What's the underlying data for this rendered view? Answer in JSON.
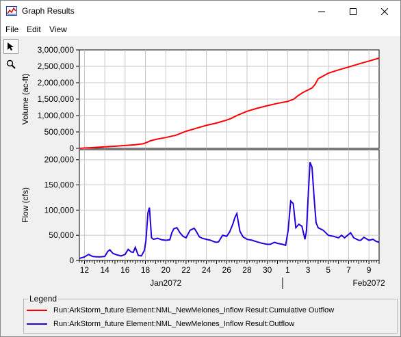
{
  "window": {
    "title": "Graph Results",
    "icon": "graph-chart-icon",
    "controls": [
      "minimize-icon",
      "maximize-icon",
      "close-icon"
    ]
  },
  "menu": {
    "items": [
      {
        "label": "File"
      },
      {
        "label": "Edit"
      },
      {
        "label": "View"
      }
    ]
  },
  "tools": [
    {
      "icon": "pointer-arrow-icon",
      "active": true
    },
    {
      "icon": "magnifier-zoom-icon",
      "active": false
    }
  ],
  "colors": {
    "volume_series": "#ff0000",
    "flow_series": "#2200dd",
    "gridline": "#c8c8c8"
  },
  "chart_data": [
    {
      "type": "line",
      "ylabel": "Volume (ac-ft)",
      "ylim": [
        0,
        3000000
      ],
      "yticks": [
        0,
        500000,
        1000000,
        1500000,
        2000000,
        2500000,
        3000000
      ],
      "ytick_labels": [
        "0",
        "500,000",
        "1,000,000",
        "1,500,000",
        "2,000,000",
        "2,500,000",
        "3,000,000"
      ],
      "grid": true,
      "series": [
        {
          "name": "Run:ArkStorm_future Element:NML_NewMelones_Inflow Result:Cumulative Outflow",
          "color": "#ff0000",
          "x": [
            10.5,
            11,
            12,
            13,
            14,
            15,
            16,
            16.8,
            17.2,
            17.5,
            18,
            19,
            20,
            21,
            22,
            23,
            24,
            25,
            25.5,
            26,
            27,
            28,
            29,
            30,
            31,
            31.6,
            32,
            32.5,
            33,
            33.4,
            33.7,
            34,
            35,
            36,
            37,
            38,
            39,
            40
          ],
          "y": [
            0,
            10000,
            25000,
            45000,
            65000,
            85000,
            110000,
            140000,
            190000,
            230000,
            270000,
            330000,
            400000,
            520000,
            610000,
            700000,
            770000,
            860000,
            920000,
            1000000,
            1130000,
            1220000,
            1300000,
            1370000,
            1430000,
            1500000,
            1600000,
            1700000,
            1780000,
            1840000,
            1950000,
            2120000,
            2290000,
            2390000,
            2480000,
            2570000,
            2660000,
            2750000
          ]
        }
      ]
    },
    {
      "type": "line",
      "ylabel": "Flow (cfs)",
      "ylim": [
        0,
        220000
      ],
      "yticks": [
        0,
        50000,
        100000,
        150000,
        200000
      ],
      "ytick_labels": [
        "0",
        "50,000",
        "100,000",
        "150,000",
        "200,000"
      ],
      "grid": true,
      "x_axis": {
        "range": [
          10.5,
          40
        ],
        "ticks": [
          11,
          13,
          15,
          17,
          19,
          21,
          23,
          25,
          27,
          29,
          31,
          33,
          35,
          37,
          39,
          40
        ],
        "tick_labels": [
          "12",
          "14",
          "16",
          "18",
          "20",
          "22",
          "24",
          "26",
          "28",
          "30",
          "1",
          "3",
          "5",
          "7",
          "9",
          ""
        ],
        "tick_values": [
          "2072-01-12",
          "2072-01-14",
          "2072-01-16",
          "2072-01-18",
          "2072-01-20",
          "2072-01-22",
          "2072-01-24",
          "2072-01-26",
          "2072-01-28",
          "2072-01-30",
          "2072-02-01",
          "2072-02-03",
          "2072-02-05",
          "2072-02-07",
          "2072-02-09"
        ],
        "minor_ticks_per_day": 4,
        "month_labels": [
          {
            "label": "Jan2072",
            "at": 19
          },
          {
            "label": "Feb2072",
            "at": 39
          }
        ],
        "month_divider_at": 30.5
      },
      "series": [
        {
          "name": "Run:ArkStorm_future Element:NML_NewMelones_Inflow Result:Outflow",
          "color": "#2200dd",
          "x": [
            10.5,
            11,
            11.4,
            11.8,
            12.2,
            12.6,
            13,
            13.3,
            13.5,
            13.8,
            14.2,
            14.6,
            15,
            15.3,
            15.6,
            15.8,
            16,
            16.3,
            16.6,
            16.9,
            17.05,
            17.25,
            17.4,
            17.6,
            17.8,
            18.2,
            18.6,
            19,
            19.4,
            19.6,
            19.8,
            20.1,
            20.4,
            20.7,
            21,
            21.4,
            21.8,
            22,
            22.3,
            22.6,
            23,
            23.4,
            23.8,
            24,
            24.2,
            24.6,
            25,
            25.3,
            25.6,
            25.8,
            26,
            26.3,
            26.6,
            27,
            27.5,
            28,
            28.5,
            29,
            29.3,
            29.7,
            30,
            30.5,
            30.8,
            31.05,
            31.3,
            31.55,
            31.8,
            32.1,
            32.4,
            32.7,
            32.85,
            33,
            33.2,
            33.4,
            33.6,
            33.8,
            34,
            34.5,
            35,
            35.5,
            36,
            36.3,
            36.6,
            36.9,
            37.2,
            37.5,
            38,
            38.2,
            38.5,
            39,
            39.4,
            39.7,
            40
          ],
          "y": [
            4000,
            7000,
            12000,
            8000,
            7000,
            7000,
            8000,
            18000,
            21000,
            14000,
            11000,
            9000,
            12000,
            22000,
            17000,
            16000,
            26000,
            10000,
            9000,
            20000,
            40000,
            95000,
            105000,
            45000,
            42000,
            44000,
            41000,
            40000,
            41000,
            55000,
            63000,
            65000,
            55000,
            48000,
            45000,
            60000,
            64000,
            58000,
            47000,
            44000,
            42000,
            40000,
            37000,
            36000,
            37000,
            50000,
            48000,
            57000,
            72000,
            85000,
            93000,
            58000,
            47000,
            42000,
            40000,
            37000,
            34000,
            32000,
            32000,
            36000,
            34000,
            32000,
            30000,
            60000,
            118000,
            113000,
            65000,
            72000,
            68000,
            42000,
            58000,
            120000,
            195000,
            185000,
            125000,
            75000,
            65000,
            60000,
            50000,
            48000,
            45000,
            50000,
            45000,
            50000,
            55000,
            45000,
            40000,
            40000,
            46000,
            40000,
            42000,
            38000,
            36000
          ]
        }
      ]
    }
  ],
  "legend": {
    "title": "Legend",
    "entries": [
      {
        "label": "Run:ArkStorm_future Element:NML_NewMelones_Inflow Result:Cumulative Outflow",
        "color": "#ff0000"
      },
      {
        "label": "Run:ArkStorm_future Element:NML_NewMelones_Inflow Result:Outflow",
        "color": "#2200dd"
      }
    ]
  }
}
